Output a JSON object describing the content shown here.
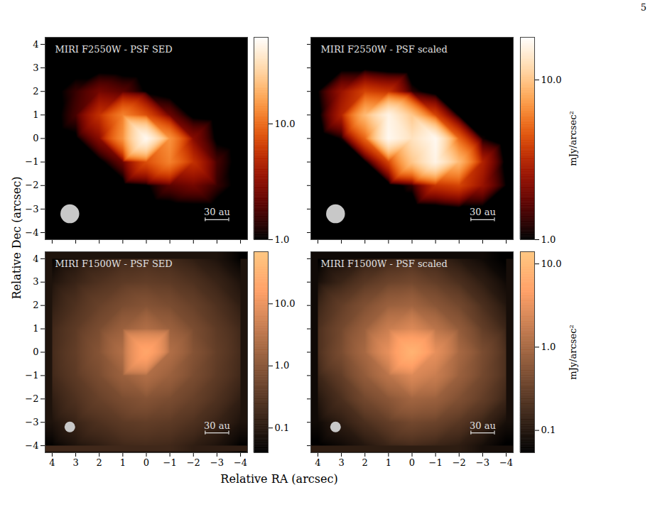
{
  "page_number": 5,
  "xlabel": "Relative RA (arcsec)",
  "ylabel": "Relative Dec (arcsec)",
  "chart_data": [
    {
      "type": "heatmap",
      "title": "MIRI F2550W - PSF SED",
      "color": "gist_heat",
      "log": true,
      "x": [
        4,
        3,
        2,
        1,
        0,
        -1,
        -2,
        -3,
        -4
      ],
      "y": [
        4,
        3,
        2,
        1,
        0,
        -1,
        -2,
        -3,
        -4
      ],
      "values": [
        [
          0.4,
          0.4,
          0.3,
          0.3,
          0.3,
          0.3,
          0.3,
          0.3,
          0.3
        ],
        [
          0.5,
          0.6,
          0.6,
          0.5,
          0.4,
          0.3,
          0.3,
          0.3,
          0.3
        ],
        [
          0.7,
          1.5,
          2.5,
          2,
          0.9,
          0.5,
          0.4,
          0.3,
          0.3
        ],
        [
          0.6,
          1.7,
          5.5,
          12,
          7.5,
          2.3,
          0.7,
          0.5,
          0.4
        ],
        [
          0.5,
          0.8,
          3,
          14,
          50,
          14,
          3,
          0.8,
          0.5
        ],
        [
          0.4,
          0.5,
          0.7,
          2.3,
          7.5,
          12,
          5.5,
          1.7,
          0.6
        ],
        [
          0.3,
          0.3,
          0.4,
          0.5,
          0.9,
          2,
          2.5,
          1.5,
          0.7
        ],
        [
          0.3,
          0.3,
          0.3,
          0.3,
          0.4,
          0.5,
          0.6,
          0.6,
          0.5
        ],
        [
          0.3,
          0.3,
          0.3,
          0.3,
          0.3,
          0.3,
          0.3,
          0.4,
          0.4
        ]
      ],
      "xlim": [
        4.3,
        -4.3
      ],
      "ylim": [
        -4.3,
        4.3
      ],
      "xticks": [
        4,
        3,
        2,
        1,
        0,
        -1,
        -2,
        -3,
        -4
      ],
      "yticks": [
        -4,
        -3,
        -2,
        -1,
        0,
        1,
        2,
        3,
        4
      ],
      "tick_labels": "y",
      "colorbar": {
        "range": [
          1,
          56
        ],
        "ticks": [
          {
            "value": 1,
            "label": "1.0"
          },
          {
            "value": 10,
            "label": "10.0"
          }
        ]
      },
      "beam_fwhm": 0.8,
      "scale_bar": {
        "label": "30 au",
        "length": 1
      }
    },
    {
      "type": "heatmap",
      "title": "MIRI F2550W - PSF scaled",
      "color": "gist_heat",
      "log": true,
      "x": [
        4,
        3,
        2,
        1,
        0,
        -1,
        -2,
        -3,
        -4
      ],
      "y": [
        4,
        3,
        2,
        1,
        0,
        -1,
        -2,
        -3,
        -4
      ],
      "values": [
        [
          0.4,
          0.4,
          0.3,
          0.3,
          0.3,
          0.3,
          0.3,
          0.3,
          0.3
        ],
        [
          0.6,
          0.8,
          0.8,
          0.5,
          0.4,
          0.3,
          0.3,
          0.3,
          0.3
        ],
        [
          1,
          2.5,
          4,
          3.5,
          1.3,
          0.6,
          0.4,
          0.3,
          0.3
        ],
        [
          0.8,
          3,
          9,
          16,
          10,
          4,
          0.9,
          0.4,
          0.3
        ],
        [
          0.4,
          1.1,
          5,
          17,
          13,
          17,
          5,
          1.1,
          0.4
        ],
        [
          0.3,
          0.4,
          0.9,
          4,
          10,
          16,
          9,
          3,
          0.8
        ],
        [
          0.3,
          0.3,
          0.4,
          0.6,
          1.3,
          3.5,
          4,
          2.5,
          1
        ],
        [
          0.3,
          0.3,
          0.3,
          0.3,
          0.4,
          0.5,
          0.8,
          0.8,
          0.6
        ],
        [
          0.3,
          0.3,
          0.3,
          0.3,
          0.3,
          0.3,
          0.3,
          0.4,
          0.4
        ]
      ],
      "xlim": [
        4.3,
        -4.3
      ],
      "ylim": [
        -4.3,
        4.3
      ],
      "xticks": [
        4,
        3,
        2,
        1,
        0,
        -1,
        -2,
        -3,
        -4
      ],
      "yticks": [
        -4,
        -3,
        -2,
        -1,
        0,
        1,
        2,
        3,
        4
      ],
      "tick_labels": false,
      "colorbar": {
        "range": [
          1,
          18.5
        ],
        "ticks": [
          {
            "value": 1,
            "label": "1.0"
          },
          {
            "value": 10,
            "label": "10.0"
          }
        ],
        "label": "mJy/arcsec²"
      },
      "beam_fwhm": 0.8,
      "scale_bar": {
        "label": "30 au",
        "length": 1
      }
    },
    {
      "type": "heatmap",
      "title": "MIRI F1500W - PSF SED",
      "color": "copper",
      "log": true,
      "x": [
        4,
        3,
        2,
        1,
        0,
        -1,
        -2,
        -3,
        -4
      ],
      "y": [
        4,
        3,
        2,
        1,
        0,
        -1,
        -2,
        -3,
        -4
      ],
      "values": [
        [
          0.04,
          0.08,
          0.12,
          0.18,
          0.2,
          0.18,
          0.12,
          0.08,
          0.04
        ],
        [
          0.08,
          0.15,
          0.25,
          0.35,
          0.4,
          0.35,
          0.25,
          0.15,
          0.08
        ],
        [
          0.12,
          0.25,
          0.45,
          0.7,
          0.9,
          0.7,
          0.45,
          0.25,
          0.12
        ],
        [
          0.18,
          0.35,
          0.7,
          1.5,
          2.5,
          1.5,
          0.7,
          0.35,
          0.18
        ],
        [
          0.2,
          0.4,
          0.9,
          2.5,
          20,
          2.5,
          0.9,
          0.4,
          0.2
        ],
        [
          0.18,
          0.35,
          0.7,
          1.5,
          2.5,
          1.5,
          0.7,
          0.35,
          0.18
        ],
        [
          0.12,
          0.25,
          0.45,
          0.7,
          0.9,
          0.7,
          0.45,
          0.25,
          0.12
        ],
        [
          0.08,
          0.15,
          0.25,
          0.35,
          0.4,
          0.35,
          0.25,
          0.15,
          0.08
        ],
        [
          0.04,
          0.08,
          0.12,
          0.18,
          0.2,
          0.18,
          0.12,
          0.08,
          0.04
        ]
      ],
      "xlim": [
        4.3,
        -4.3
      ],
      "ylim": [
        -4.3,
        4.3
      ],
      "xticks": [
        4,
        3,
        2,
        1,
        0,
        -1,
        -2,
        -3,
        -4
      ],
      "yticks": [
        -4,
        -3,
        -2,
        -1,
        0,
        1,
        2,
        3,
        4
      ],
      "tick_labels": true,
      "colorbar": {
        "range": [
          0.04,
          69
        ],
        "ticks": [
          0.1,
          {
            "value": 1,
            "label": "1.0"
          },
          {
            "value": 10,
            "label": "10.0"
          }
        ]
      },
      "beam_fwhm": 0.45,
      "scale_bar": {
        "label": "30 au",
        "length": 1
      }
    },
    {
      "type": "heatmap",
      "title": "MIRI F1500W - PSF scaled",
      "color": "copper",
      "log": true,
      "x": [
        4,
        3,
        2,
        1,
        0,
        -1,
        -2,
        -3,
        -4
      ],
      "y": [
        4,
        3,
        2,
        1,
        0,
        -1,
        -2,
        -3,
        -4
      ],
      "values": [
        [
          0.05,
          0.08,
          0.12,
          0.15,
          0.18,
          0.15,
          0.1,
          0.07,
          0.05
        ],
        [
          0.08,
          0.15,
          0.25,
          0.35,
          0.4,
          0.3,
          0.2,
          0.12,
          0.07
        ],
        [
          0.15,
          0.3,
          0.5,
          0.8,
          0.9,
          0.6,
          0.4,
          0.2,
          0.1
        ],
        [
          0.2,
          0.4,
          0.8,
          1.8,
          2.5,
          1.4,
          0.7,
          0.3,
          0.15
        ],
        [
          0.2,
          0.45,
          1,
          3,
          8,
          3,
          1,
          0.45,
          0.2
        ],
        [
          0.15,
          0.3,
          0.7,
          1.4,
          2.5,
          1.8,
          0.8,
          0.4,
          0.2
        ],
        [
          0.1,
          0.2,
          0.4,
          0.6,
          0.9,
          0.8,
          0.5,
          0.3,
          0.15
        ],
        [
          0.07,
          0.12,
          0.2,
          0.3,
          0.4,
          0.35,
          0.25,
          0.15,
          0.08
        ],
        [
          0.05,
          0.07,
          0.1,
          0.15,
          0.18,
          0.15,
          0.12,
          0.08,
          0.05
        ]
      ],
      "xlim": [
        4.3,
        -4.3
      ],
      "ylim": [
        -4.3,
        4.3
      ],
      "xticks": [
        4,
        3,
        2,
        1,
        0,
        -1,
        -2,
        -3,
        -4
      ],
      "yticks": [
        -4,
        -3,
        -2,
        -1,
        0,
        1,
        2,
        3,
        4
      ],
      "tick_labels": "x",
      "colorbar": {
        "range": [
          0.054,
          14
        ],
        "ticks": [
          0.1,
          {
            "value": 1,
            "label": "1.0"
          },
          {
            "value": 10,
            "label": "10.0"
          }
        ],
        "label": "mJy/arcsec²"
      },
      "beam_fwhm": 0.45,
      "scale_bar": {
        "label": "30 au",
        "length": 1
      }
    }
  ]
}
